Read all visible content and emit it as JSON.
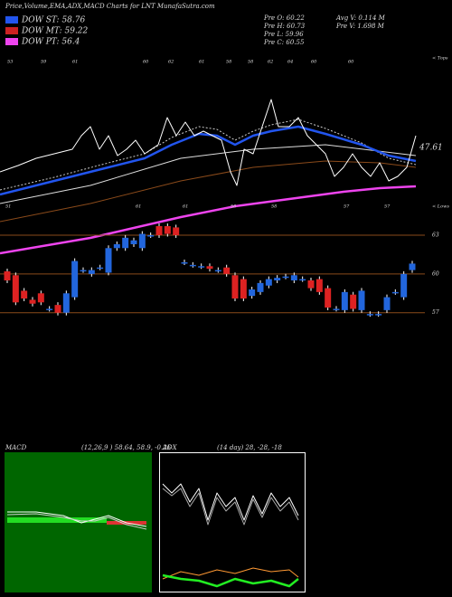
{
  "header": {
    "title": "Price,Volume,EMA,ADX,MACD Charts for LNT MunafaSutra.com"
  },
  "legend": [
    {
      "label": "DOW ST: 58.76",
      "color": "#2255ee"
    },
    {
      "label": "DOW MT: 59.22",
      "color": "#cc2222"
    },
    {
      "label": "DOW PT: 56.4",
      "color": "#ee44ee"
    }
  ],
  "info": [
    "Pre  O: 60.22",
    "Pre  H: 60.73",
    "Pre  L: 59.96",
    "Pre  C: 60.55",
    "Avg V: 0.114  M",
    "Pre  V: 1.698  M"
  ],
  "top_labels": [
    "53",
    "59",
    "61",
    "60",
    "62",
    "61",
    "58",
    "58",
    "62",
    "64",
    "60",
    "60"
  ],
  "low_labels": [
    "51",
    "61",
    "61",
    "58",
    "58",
    "57",
    "57"
  ],
  "tops_label": "< Tops",
  "lows_label": "< Lows",
  "ema_label": "47.61",
  "macd": {
    "title": "MACD",
    "params": "(12,26,9 ) 58.64, 58.9, -0.26"
  },
  "adx": {
    "title": "ADX",
    "params": "(14 day) 28, -28, -18"
  },
  "chart_data": {
    "type": "candlestick",
    "ylim": [
      56,
      64.4
    ],
    "yticks": [
      57,
      60,
      63
    ],
    "up_color": "#2266dd",
    "down_color": "#dd2222",
    "open": [
      60.2,
      59.9,
      58.7,
      58.0,
      58.5,
      57.3,
      57.6,
      57.0,
      58.2,
      60.3,
      60.0,
      60.5,
      60.1,
      62.0,
      62.0,
      62.3,
      62.0,
      63.0,
      63.7,
      63.7,
      63.6,
      60.9,
      60.7,
      60.6,
      60.6,
      60.3,
      60.5,
      59.9,
      59.6,
      58.3,
      58.6,
      59.1,
      59.5,
      59.8,
      59.5,
      59.6,
      59.5,
      59.6,
      58.9,
      57.3,
      57.2,
      58.4,
      57.2,
      56.9,
      56.9,
      57.2,
      58.6,
      58.2,
      60.3
    ],
    "close": [
      59.5,
      57.8,
      58.1,
      57.7,
      57.8,
      57.3,
      57.0,
      58.5,
      61.0,
      60.3,
      60.3,
      60.5,
      62.0,
      62.3,
      62.8,
      62.6,
      63.1,
      63.0,
      63.0,
      63.1,
      63.0,
      60.9,
      60.7,
      60.6,
      60.4,
      60.3,
      60.0,
      58.1,
      58.1,
      58.8,
      59.3,
      59.6,
      59.7,
      59.8,
      59.9,
      59.6,
      58.9,
      58.6,
      57.4,
      57.3,
      58.6,
      57.3,
      58.7,
      56.9,
      56.9,
      58.2,
      58.6,
      60.0,
      60.8
    ]
  }
}
